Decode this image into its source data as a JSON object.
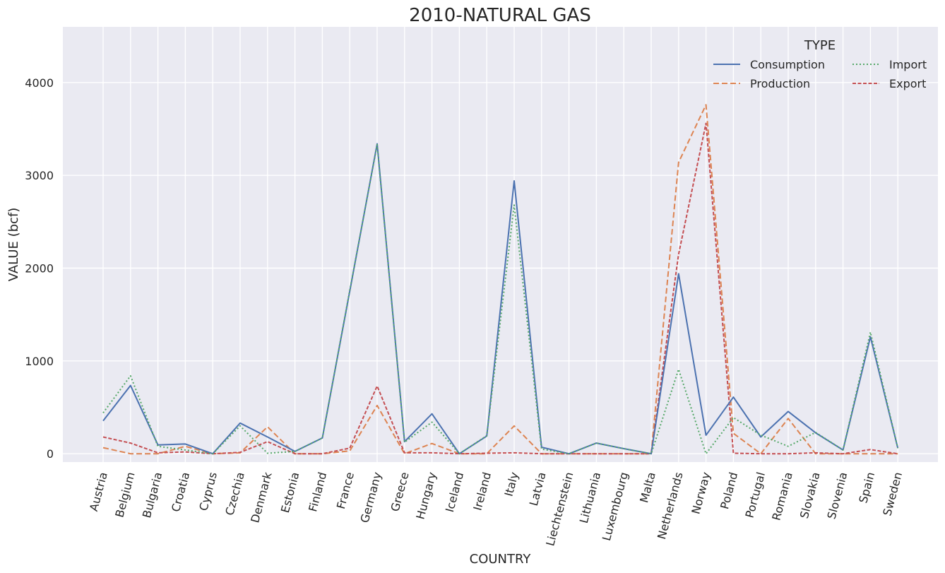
{
  "chart_data": {
    "type": "line",
    "title": "2010-NATURAL GAS",
    "xlabel": "COUNTRY",
    "ylabel": "VALUE (bcf)",
    "ylim": [
      -90,
      4600
    ],
    "yticks": [
      0,
      1000,
      2000,
      3000,
      4000
    ],
    "grid": true,
    "legend": {
      "title": "TYPE",
      "placement": "top-right"
    },
    "categories": [
      "Austria",
      "Belgium",
      "Bulgaria",
      "Croatia",
      "Cyprus",
      "Czechia",
      "Denmark",
      "Estonia",
      "Finland",
      "France",
      "Germany",
      "Greece",
      "Hungary",
      "Iceland",
      "Ireland",
      "Italy",
      "Latvia",
      "Liechtenstein",
      "Lithuania",
      "Luxembourg",
      "Malta",
      "Netherlands",
      "Norway",
      "Poland",
      "Portugal",
      "Romania",
      "Slovakia",
      "Slovenia",
      "Spain",
      "Sweden"
    ],
    "series": [
      {
        "name": "Consumption",
        "color": "#4c72b0",
        "dash": "solid",
        "values": [
          355,
          735,
          95,
          105,
          0,
          330,
          180,
          25,
          170,
          1750,
          3340,
          130,
          430,
          0,
          190,
          2940,
          70,
          0,
          115,
          55,
          0,
          1940,
          200,
          610,
          180,
          455,
          225,
          40,
          1260,
          60
        ]
      },
      {
        "name": "Import",
        "color": "#55a868",
        "dash": "dotted",
        "values": [
          440,
          840,
          80,
          40,
          0,
          300,
          5,
          25,
          170,
          1760,
          3330,
          125,
          340,
          0,
          195,
          2680,
          50,
          0,
          115,
          55,
          0,
          910,
          0,
          390,
          200,
          80,
          230,
          40,
          1310,
          60
        ]
      },
      {
        "name": "Production",
        "color": "#dd8452",
        "dash": "dashed",
        "values": [
          65,
          0,
          0,
          80,
          0,
          10,
          290,
          0,
          0,
          30,
          520,
          0,
          110,
          0,
          0,
          300,
          0,
          0,
          0,
          0,
          0,
          3140,
          3760,
          220,
          0,
          380,
          0,
          0,
          0,
          0
        ]
      },
      {
        "name": "Export",
        "color": "#c44e52",
        "dash": "dashdot",
        "values": [
          180,
          115,
          10,
          20,
          0,
          15,
          130,
          0,
          0,
          60,
          730,
          10,
          10,
          0,
          5,
          10,
          0,
          0,
          0,
          0,
          0,
          2150,
          3560,
          5,
          0,
          0,
          10,
          0,
          45,
          0
        ]
      }
    ],
    "legend_order": [
      "Consumption",
      "Import",
      "Production",
      "Export"
    ]
  }
}
